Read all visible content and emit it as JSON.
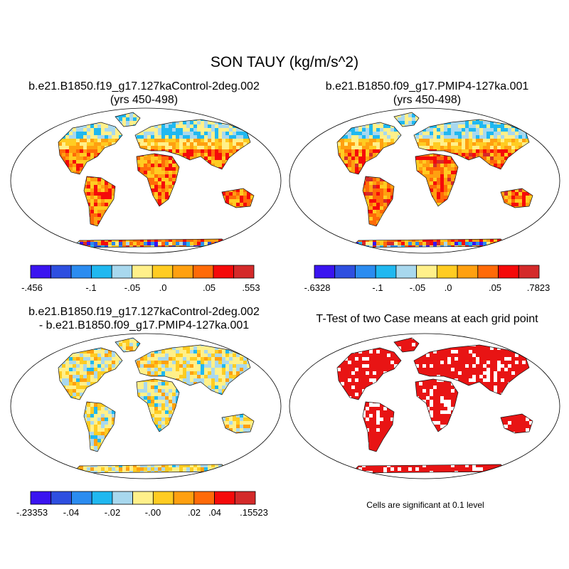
{
  "figure_title": "SON TAUY (kg/m/s^2)",
  "panels": {
    "top_left": {
      "title_line1": "b.e21.B1850.f19_g17.127kaControl-2deg.002",
      "title_line2": "(yrs 450-498)",
      "colorbar_labels": [
        "-.456",
        "-.1",
        "-.05",
        ".0",
        ".05",
        ".553"
      ]
    },
    "top_right": {
      "title_line1": "b.e21.B1850.f09_g17.PMIP4-127ka.001",
      "title_line2": "(yrs 450-498)",
      "colorbar_labels": [
        "-.6328",
        "-.1",
        "-.05",
        ".0",
        ".05",
        ".7823"
      ]
    },
    "bottom_left": {
      "title_line1": "b.e21.B1850.f19_g17.127kaControl-2deg.002",
      "title_line2": "- b.e21.B1850.f09_g17.PMIP4-127ka.001",
      "colorbar_labels": [
        "-.23353",
        "-.04",
        "-.02",
        "-.00",
        ".02",
        ".04",
        ".15523"
      ]
    },
    "bottom_right": {
      "title": "T-Test of two Case means at each grid point",
      "note": "Cells are significant at 0.1 level"
    }
  },
  "colormap": [
    "#3a14f0",
    "#2e4fe0",
    "#2b8cf0",
    "#20b8f0",
    "#a8d8ee",
    "#fff08a",
    "#ffcc22",
    "#ffa010",
    "#ff6a08",
    "#f50a0a",
    "#d42a2a"
  ],
  "significance_color": "#e81414"
}
